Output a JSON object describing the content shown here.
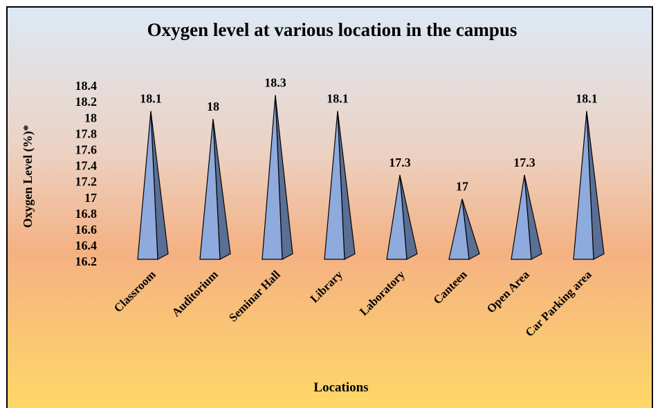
{
  "chart_data": {
    "type": "pyramid",
    "title": "Oxygen level at various location in the campus",
    "y_label": "Oxygen Level (%)*",
    "x_label": "Locations",
    "categories": [
      "Classroom",
      "Auditorium",
      "Seminar Hall",
      "Library",
      "Laboratory",
      "Canteen",
      "Open Area",
      "Car Parking area"
    ],
    "values": [
      18.1,
      18,
      18.3,
      18.1,
      17.3,
      17,
      17.3,
      18.1
    ],
    "color": "#8faadc",
    "ylim": [
      16.2,
      18.4
    ],
    "yticks": [
      16.2,
      16.4,
      16.6,
      16.8,
      17,
      17.2,
      17.4,
      17.6,
      17.8,
      18,
      18.2,
      18.4
    ],
    "grid": false
  }
}
